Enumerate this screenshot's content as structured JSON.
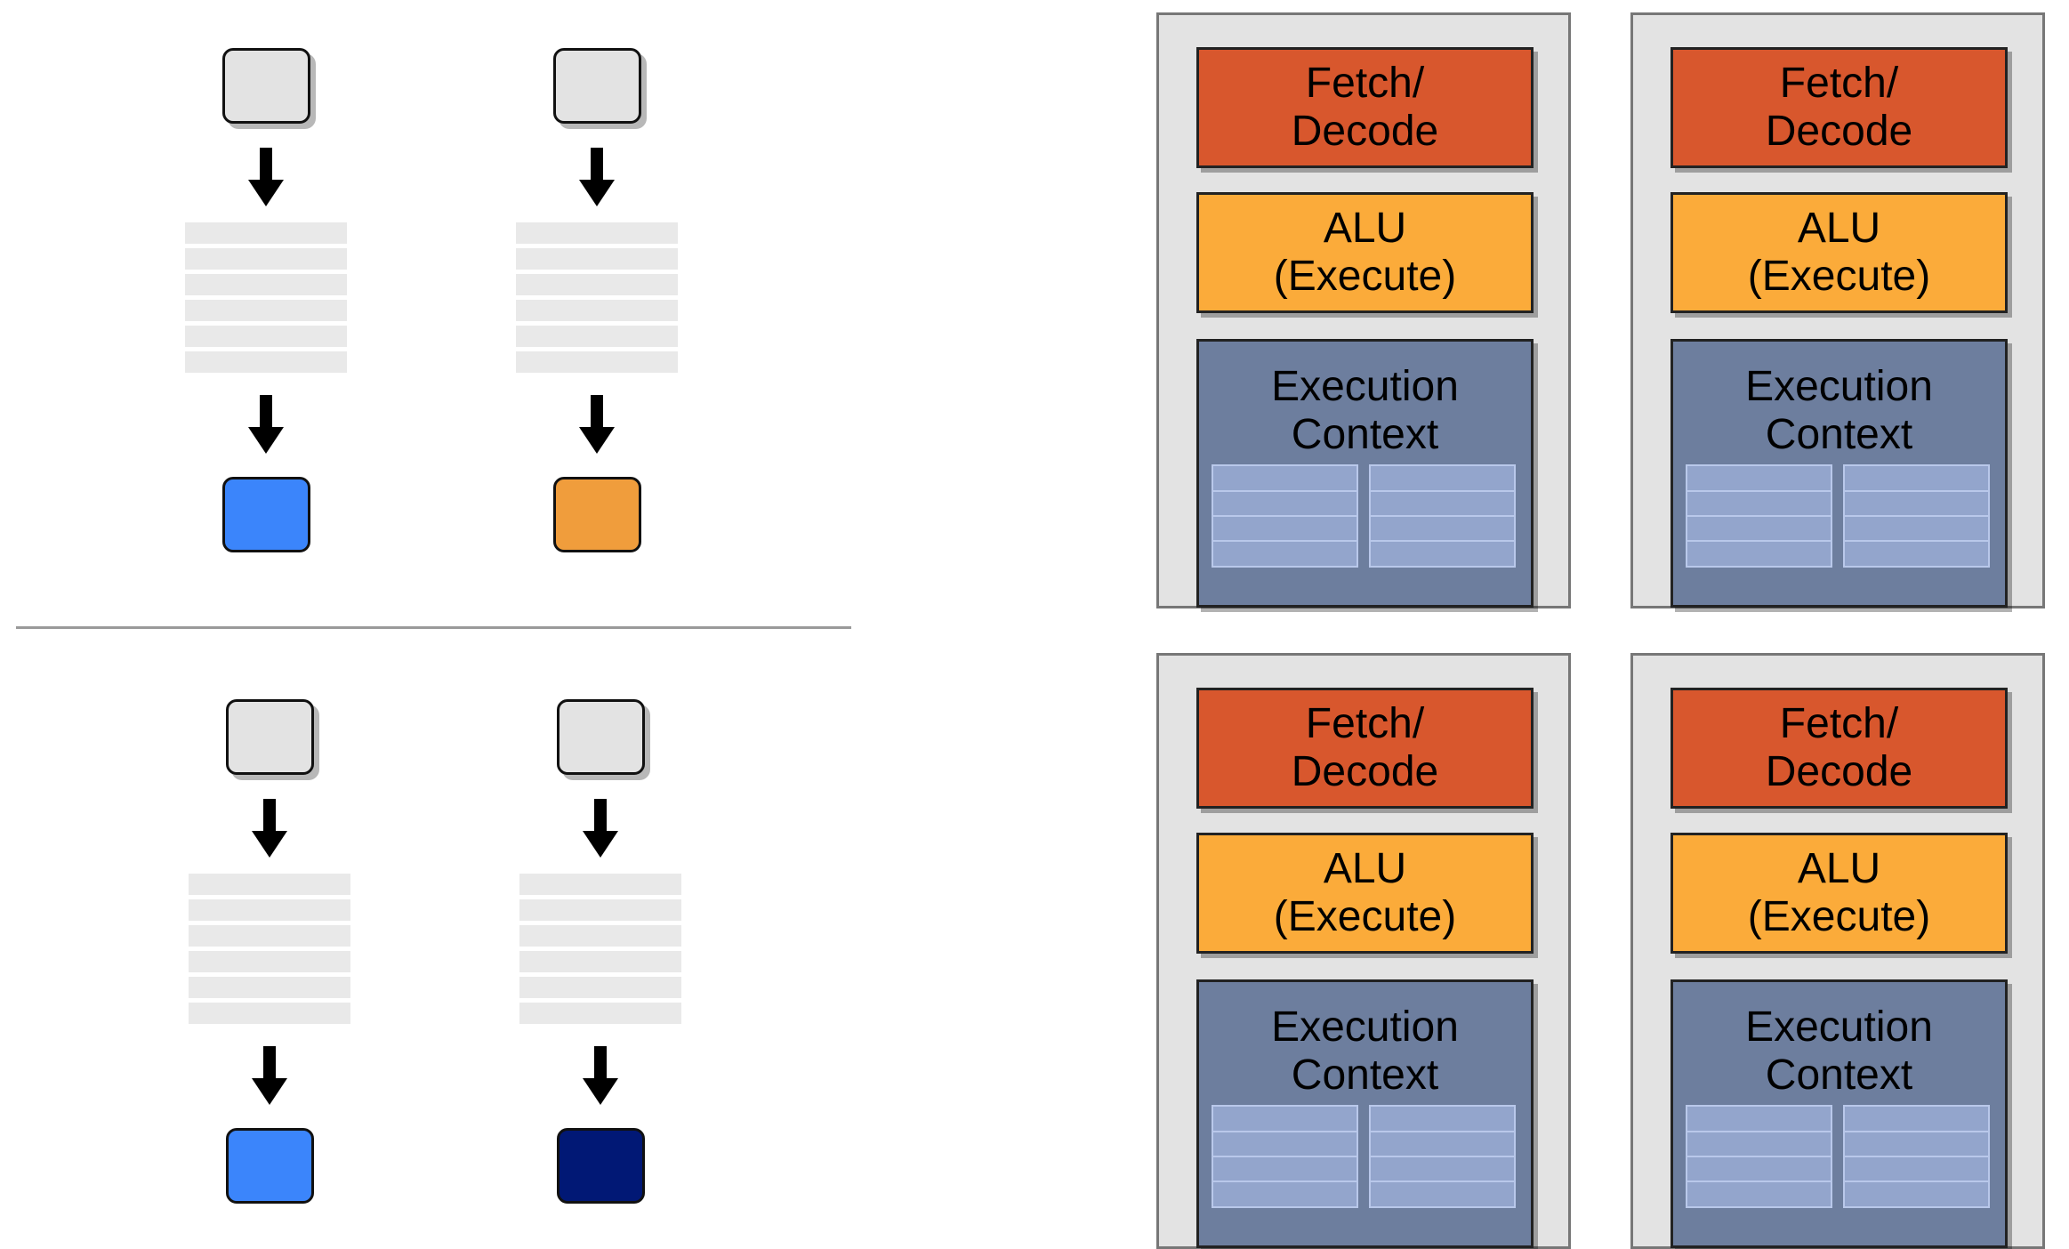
{
  "colors": {
    "input_box": "#e3e3e3",
    "code_lines": "#e9e9e9",
    "fetch_decode": "#d8572d",
    "alu": "#fbab3a",
    "execution_context": "#6d7e9e",
    "registers": "#93a5cc",
    "core_background": "#e3e3e3"
  },
  "pipelines": {
    "top": [
      {
        "output_color": "#3b85fb"
      },
      {
        "output_color": "#f09d3c"
      }
    ],
    "bottom": [
      {
        "output_color": "#3b85fb"
      },
      {
        "output_color": "#011875"
      }
    ]
  },
  "cores": [
    {
      "fetch": "Fetch/\nDecode",
      "alu": "ALU\n(Execute)",
      "context": "Execution\nContext"
    },
    {
      "fetch": "Fetch/\nDecode",
      "alu": "ALU\n(Execute)",
      "context": "Execution\nContext"
    },
    {
      "fetch": "Fetch/\nDecode",
      "alu": "ALU\n(Execute)",
      "context": "Execution\nContext"
    },
    {
      "fetch": "Fetch/\nDecode",
      "alu": "ALU\n(Execute)",
      "context": "Execution\nContext"
    }
  ]
}
